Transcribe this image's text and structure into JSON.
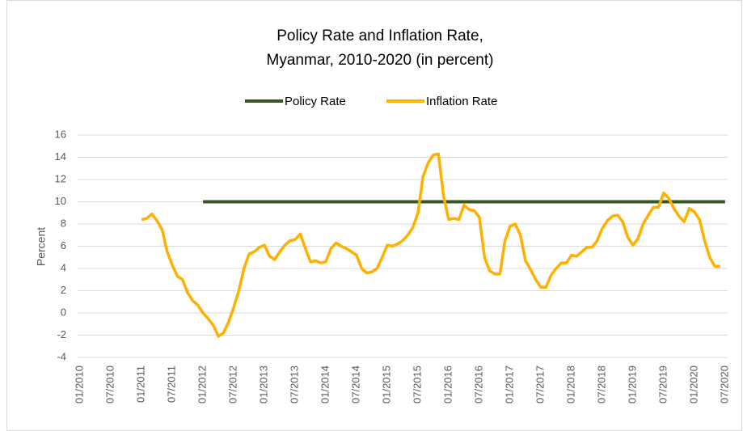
{
  "chart_data": {
    "type": "line",
    "title": [
      "Policy Rate and Inflation Rate,",
      "Myanmar, 2010-2020 (in percent)"
    ],
    "y_label": "Percent",
    "categories": [
      "01/2010",
      null,
      null,
      null,
      null,
      null,
      "07/2010",
      null,
      null,
      null,
      null,
      null,
      "01/2011",
      null,
      null,
      null,
      null,
      null,
      "07/2011",
      null,
      null,
      null,
      null,
      null,
      "01/2012",
      null,
      null,
      null,
      null,
      null,
      "07/2012",
      null,
      null,
      null,
      null,
      null,
      "01/2013",
      null,
      null,
      null,
      null,
      null,
      "07/2013",
      null,
      null,
      null,
      null,
      null,
      "01/2014",
      null,
      null,
      null,
      null,
      null,
      "07/2014",
      null,
      null,
      null,
      null,
      null,
      "01/2015",
      null,
      null,
      null,
      null,
      null,
      "07/2015",
      null,
      null,
      null,
      null,
      null,
      "01/2016",
      null,
      null,
      null,
      null,
      null,
      "07/2016",
      null,
      null,
      null,
      null,
      null,
      "01/2017",
      null,
      null,
      null,
      null,
      null,
      "07/2017",
      null,
      null,
      null,
      null,
      null,
      "01/2018",
      null,
      null,
      null,
      null,
      null,
      "07/2018",
      null,
      null,
      null,
      null,
      null,
      "01/2019",
      null,
      null,
      null,
      null,
      null,
      "07/2019",
      null,
      null,
      null,
      null,
      null,
      "01/2020",
      null,
      null,
      null,
      null,
      null,
      "07/2020"
    ],
    "series": [
      {
        "name": "Policy Rate",
        "color": "#375623",
        "values": [
          null,
          null,
          null,
          null,
          null,
          null,
          null,
          null,
          null,
          null,
          null,
          null,
          null,
          null,
          null,
          null,
          null,
          null,
          null,
          null,
          null,
          null,
          null,
          null,
          10,
          10,
          10,
          10,
          10,
          10,
          10,
          10,
          10,
          10,
          10,
          10,
          10,
          10,
          10,
          10,
          10,
          10,
          10,
          10,
          10,
          10,
          10,
          10,
          10,
          10,
          10,
          10,
          10,
          10,
          10,
          10,
          10,
          10,
          10,
          10,
          10,
          10,
          10,
          10,
          10,
          10,
          10,
          10,
          10,
          10,
          10,
          10,
          10,
          10,
          10,
          10,
          10,
          10,
          10,
          10,
          10,
          10,
          10,
          10,
          10,
          10,
          10,
          10,
          10,
          10,
          10,
          10,
          10,
          10,
          10,
          10,
          10,
          10,
          10,
          10,
          10,
          10,
          10,
          10,
          10,
          10,
          10,
          10,
          10,
          10,
          10,
          10,
          10,
          10,
          10,
          10,
          10,
          10,
          10,
          10,
          10,
          10,
          10,
          10,
          10,
          10,
          10
        ]
      },
      {
        "name": "Inflation Rate",
        "color": "#ffb000",
        "values": [
          null,
          null,
          null,
          null,
          null,
          null,
          null,
          null,
          null,
          null,
          null,
          null,
          8.4,
          8.5,
          8.9,
          8.3,
          7.5,
          5.5,
          4.3,
          3.3,
          3.0,
          1.8,
          1.1,
          0.7,
          0.0,
          -0.5,
          -1.1,
          -2.1,
          -1.8,
          -0.8,
          0.5,
          2.0,
          4.0,
          5.3,
          5.5,
          5.9,
          6.1,
          5.1,
          4.8,
          5.5,
          6.1,
          6.5,
          6.6,
          7.1,
          5.8,
          4.6,
          4.7,
          4.5,
          4.6,
          5.8,
          6.3,
          6.0,
          5.8,
          5.5,
          5.2,
          4.0,
          3.6,
          3.7,
          4.0,
          5.0,
          6.1,
          6.0,
          6.2,
          6.5,
          7.0,
          7.7,
          9.0,
          12.3,
          13.5,
          14.2,
          14.3,
          10.5,
          8.4,
          8.5,
          8.4,
          9.7,
          9.3,
          9.2,
          8.6,
          5.0,
          3.8,
          3.5,
          3.5,
          6.5,
          7.8,
          8.0,
          7.0,
          4.7,
          3.9,
          3.0,
          2.3,
          2.3,
          3.4,
          4.0,
          4.5,
          4.5,
          5.2,
          5.1,
          5.5,
          5.9,
          5.9,
          6.5,
          7.6,
          8.3,
          8.7,
          8.8,
          8.2,
          6.8,
          6.1,
          6.7,
          8.0,
          8.8,
          9.5,
          9.5,
          10.8,
          10.3,
          9.4,
          8.7,
          8.2,
          9.4,
          9.1,
          8.4,
          6.5,
          5.0,
          4.2,
          4.2,
          null
        ]
      }
    ],
    "ylim": [
      -4,
      16
    ],
    "yticks": [
      -4,
      -2,
      0,
      2,
      4,
      6,
      8,
      10,
      12,
      14,
      16
    ],
    "grid": true,
    "legend": "top"
  }
}
